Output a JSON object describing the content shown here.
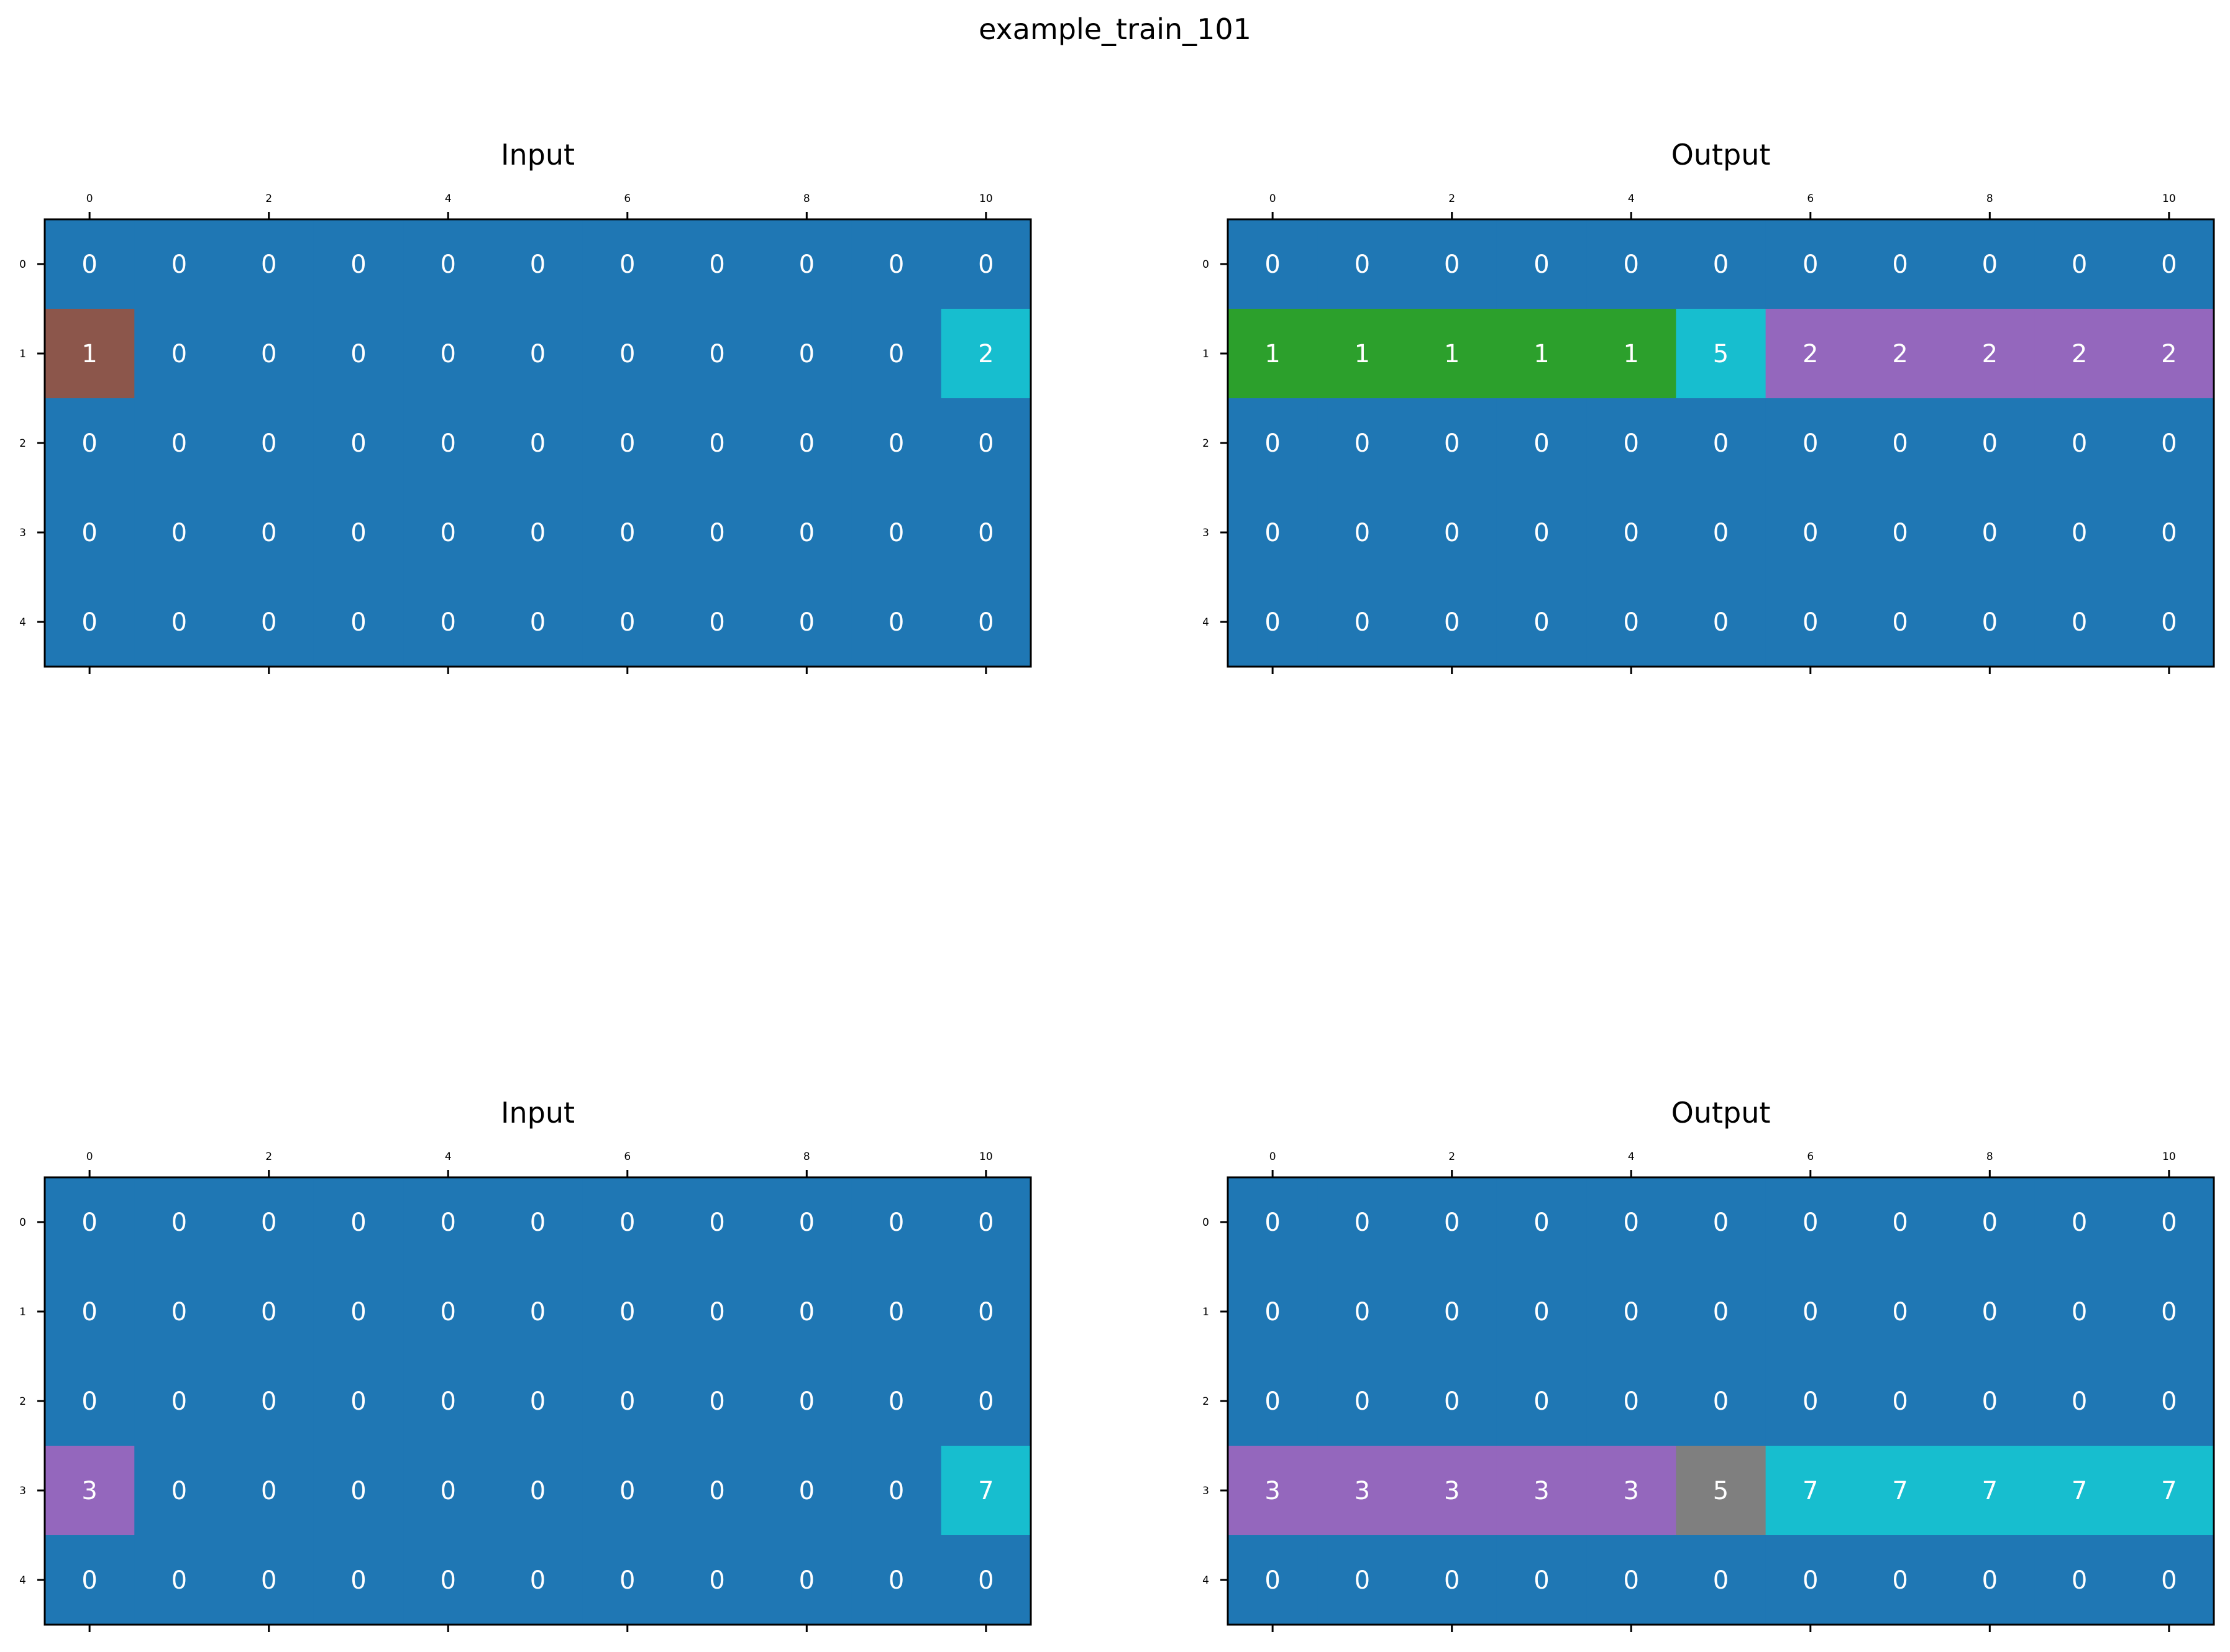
{
  "figure": {
    "title": "example_train_101"
  },
  "palette": {
    "0": "#1f77b4",
    "1": "#2ca02c",
    "2": "#9467bd",
    "3": "#9467bd",
    "5": "#7f7f7f",
    "7": "#17becf"
  },
  "chart_data": [
    {
      "type": "heatmap",
      "title": "Input",
      "x_ticks": [
        0,
        2,
        4,
        6,
        8,
        10
      ],
      "y_ticks": [
        0,
        1,
        2,
        3,
        4
      ],
      "grid": [
        [
          0,
          0,
          0,
          0,
          0,
          0,
          0,
          0,
          0,
          0,
          0
        ],
        [
          1,
          0,
          0,
          0,
          0,
          0,
          0,
          0,
          0,
          0,
          2
        ],
        [
          0,
          0,
          0,
          0,
          0,
          0,
          0,
          0,
          0,
          0,
          0
        ],
        [
          0,
          0,
          0,
          0,
          0,
          0,
          0,
          0,
          0,
          0,
          0
        ],
        [
          0,
          0,
          0,
          0,
          0,
          0,
          0,
          0,
          0,
          0,
          0
        ]
      ],
      "cell_colors": {
        "1,0": "#8c564b",
        "1,10": "#17becf"
      }
    },
    {
      "type": "heatmap",
      "title": "Output",
      "x_ticks": [
        0,
        2,
        4,
        6,
        8,
        10
      ],
      "y_ticks": [
        0,
        1,
        2,
        3,
        4
      ],
      "grid": [
        [
          0,
          0,
          0,
          0,
          0,
          0,
          0,
          0,
          0,
          0,
          0
        ],
        [
          1,
          1,
          1,
          1,
          1,
          5,
          2,
          2,
          2,
          2,
          2
        ],
        [
          0,
          0,
          0,
          0,
          0,
          0,
          0,
          0,
          0,
          0,
          0
        ],
        [
          0,
          0,
          0,
          0,
          0,
          0,
          0,
          0,
          0,
          0,
          0
        ],
        [
          0,
          0,
          0,
          0,
          0,
          0,
          0,
          0,
          0,
          0,
          0
        ]
      ],
      "cell_colors": {
        "1,5": "#17becf"
      }
    },
    {
      "type": "heatmap",
      "title": "Input",
      "x_ticks": [
        0,
        2,
        4,
        6,
        8,
        10
      ],
      "y_ticks": [
        0,
        1,
        2,
        3,
        4
      ],
      "grid": [
        [
          0,
          0,
          0,
          0,
          0,
          0,
          0,
          0,
          0,
          0,
          0
        ],
        [
          0,
          0,
          0,
          0,
          0,
          0,
          0,
          0,
          0,
          0,
          0
        ],
        [
          0,
          0,
          0,
          0,
          0,
          0,
          0,
          0,
          0,
          0,
          0
        ],
        [
          3,
          0,
          0,
          0,
          0,
          0,
          0,
          0,
          0,
          0,
          7
        ],
        [
          0,
          0,
          0,
          0,
          0,
          0,
          0,
          0,
          0,
          0,
          0
        ]
      ],
      "cell_colors": {}
    },
    {
      "type": "heatmap",
      "title": "Output",
      "x_ticks": [
        0,
        2,
        4,
        6,
        8,
        10
      ],
      "y_ticks": [
        0,
        1,
        2,
        3,
        4
      ],
      "grid": [
        [
          0,
          0,
          0,
          0,
          0,
          0,
          0,
          0,
          0,
          0,
          0
        ],
        [
          0,
          0,
          0,
          0,
          0,
          0,
          0,
          0,
          0,
          0,
          0
        ],
        [
          0,
          0,
          0,
          0,
          0,
          0,
          0,
          0,
          0,
          0,
          0
        ],
        [
          3,
          3,
          3,
          3,
          3,
          5,
          7,
          7,
          7,
          7,
          7
        ],
        [
          0,
          0,
          0,
          0,
          0,
          0,
          0,
          0,
          0,
          0,
          0
        ]
      ],
      "cell_colors": {}
    }
  ]
}
